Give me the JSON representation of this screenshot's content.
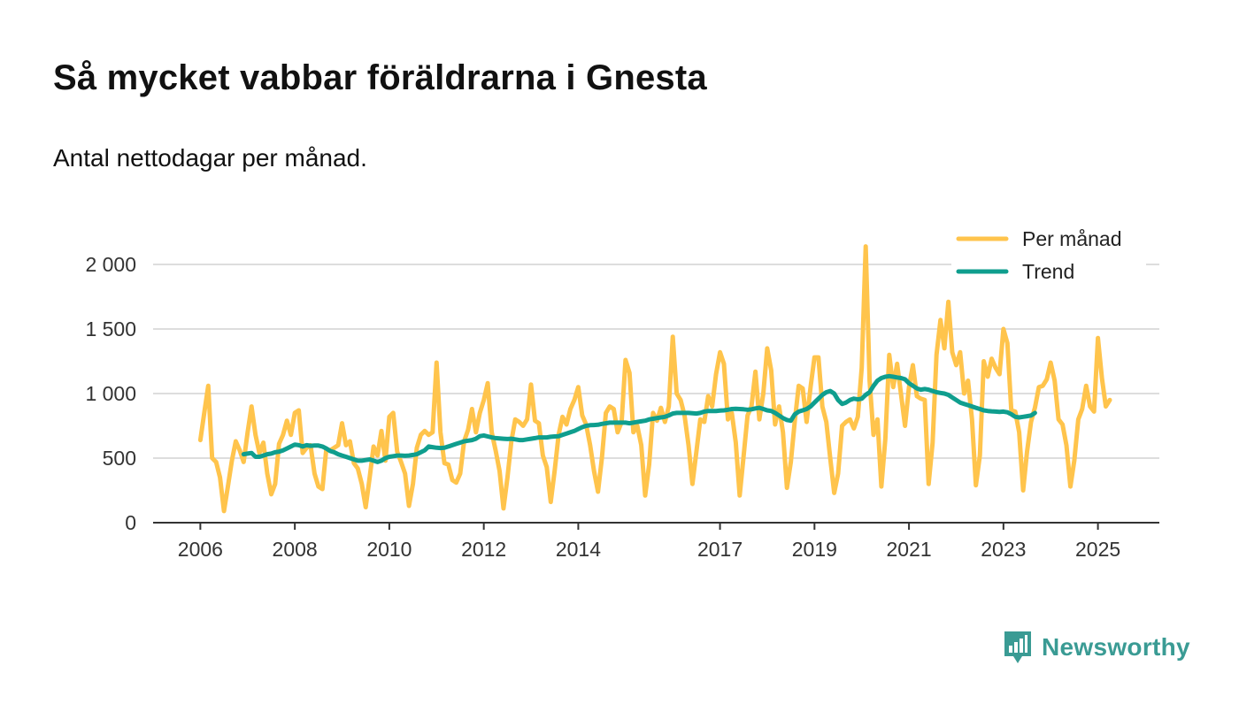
{
  "header": {
    "title": "Så mycket vabbar föräldrarna i Gnesta",
    "subtitle": "Antal nettodagar per månad."
  },
  "brand": {
    "name": "Newsworthy",
    "icon": "newsworthy-logo-icon",
    "color": "#3a9b94"
  },
  "colors": {
    "monthly": "#ffc44c",
    "trend": "#0f9e8e",
    "grid": "#dddddd",
    "axis": "#333333"
  },
  "chart_data": {
    "type": "line",
    "title": "Så mycket vabbar föräldrarna i Gnesta",
    "subtitle": "Antal nettodagar per månad.",
    "xlabel": "",
    "ylabel": "",
    "xlim": [
      2005.0,
      2026.3
    ],
    "ylim": [
      0,
      2000
    ],
    "yticks": [
      {
        "value": 0,
        "label": "0"
      },
      {
        "value": 500,
        "label": "500"
      },
      {
        "value": 1000,
        "label": "1 000"
      },
      {
        "value": 1500,
        "label": "1 500"
      },
      {
        "value": 2000,
        "label": "2 000"
      }
    ],
    "xticks": [
      {
        "value": 2006.0,
        "label": "2006"
      },
      {
        "value": 2008.0,
        "label": "2008"
      },
      {
        "value": 2010.0,
        "label": "2010"
      },
      {
        "value": 2012.0,
        "label": "2012"
      },
      {
        "value": 2014.0,
        "label": "2014"
      },
      {
        "value": 2017.0,
        "label": "2017"
      },
      {
        "value": 2019.0,
        "label": "2019"
      },
      {
        "value": 2021.0,
        "label": "2021"
      },
      {
        "value": 2023.0,
        "label": "2023"
      },
      {
        "value": 2025.0,
        "label": "2025"
      }
    ],
    "legend": {
      "position": "top-right"
    },
    "series": [
      {
        "name": "Per månad",
        "color": "#ffc44c",
        "start": 2006.0,
        "step": 0.0833333,
        "values": [
          640,
          850,
          1060,
          500,
          470,
          350,
          90,
          280,
          480,
          630,
          560,
          470,
          700,
          900,
          680,
          540,
          620,
          380,
          220,
          300,
          610,
          680,
          790,
          680,
          850,
          870,
          540,
          580,
          600,
          380,
          280,
          260,
          570,
          560,
          580,
          600,
          770,
          600,
          630,
          460,
          420,
          300,
          120,
          350,
          590,
          520,
          710,
          480,
          820,
          850,
          550,
          470,
          380,
          130,
          300,
          580,
          680,
          710,
          680,
          700,
          1240,
          700,
          460,
          450,
          330,
          310,
          380,
          630,
          720,
          880,
          700,
          850,
          950,
          1080,
          700,
          560,
          400,
          110,
          350,
          630,
          800,
          780,
          750,
          800,
          1070,
          790,
          770,
          520,
          430,
          160,
          400,
          680,
          820,
          760,
          880,
          950,
          1050,
          830,
          760,
          600,
          400,
          240,
          500,
          850,
          900,
          880,
          700,
          780,
          1260,
          1160,
          700,
          750,
          600,
          210,
          450,
          850,
          790,
          890,
          780,
          900,
          1440,
          1000,
          950,
          830,
          600,
          300,
          550,
          800,
          780,
          980,
          900,
          1150,
          1320,
          1230,
          800,
          850,
          620,
          210,
          520,
          830,
          900,
          1170,
          800,
          1000,
          1350,
          1180,
          760,
          900,
          700,
          270,
          470,
          790,
          1060,
          1040,
          780,
          1050,
          1280,
          1280,
          900,
          780,
          500,
          230,
          380,
          750,
          780,
          800,
          730,
          820,
          1200,
          2140,
          1100,
          680,
          800,
          280,
          650,
          1300,
          1050,
          1230,
          990,
          750,
          1050,
          1220,
          980,
          960,
          950,
          300,
          620,
          1300,
          1570,
          1350,
          1710,
          1320,
          1220,
          1320,
          1000,
          1100,
          800,
          290,
          520,
          1250,
          1130,
          1270,
          1200,
          1150,
          1500,
          1390,
          870,
          860,
          700,
          250,
          550,
          780,
          890,
          1050,
          1060,
          1110,
          1240,
          1100,
          800,
          760,
          600,
          280,
          480,
          800,
          880,
          1060,
          900,
          860,
          1430,
          1120,
          900,
          950
        ]
      },
      {
        "name": "Trend",
        "color": "#0f9e8e",
        "start": 2006.9167,
        "step": 0.0833333,
        "values": [
          530,
          535,
          540,
          510,
          510,
          520,
          530,
          535,
          545,
          550,
          560,
          575,
          590,
          605,
          600,
          590,
          600,
          595,
          598,
          597,
          590,
          575,
          555,
          545,
          530,
          520,
          510,
          500,
          490,
          480,
          480,
          485,
          490,
          480,
          470,
          480,
          500,
          510,
          515,
          520,
          520,
          518,
          520,
          525,
          530,
          545,
          560,
          590,
          585,
          580,
          578,
          580,
          590,
          600,
          610,
          620,
          630,
          635,
          640,
          650,
          670,
          675,
          668,
          660,
          655,
          652,
          650,
          648,
          650,
          645,
          640,
          640,
          645,
          650,
          655,
          660,
          660,
          660,
          665,
          668,
          670,
          680,
          690,
          700,
          710,
          725,
          740,
          750,
          755,
          756,
          758,
          765,
          770,
          775,
          775,
          775,
          775,
          775,
          770,
          775,
          780,
          785,
          790,
          800,
          805,
          810,
          815,
          820,
          830,
          845,
          850,
          850,
          850,
          850,
          848,
          845,
          850,
          860,
          865,
          865,
          865,
          868,
          870,
          875,
          880,
          882,
          880,
          878,
          875,
          878,
          885,
          890,
          880,
          870,
          865,
          850,
          830,
          810,
          795,
          790,
          840,
          860,
          870,
          880,
          900,
          930,
          960,
          990,
          1010,
          1020,
          1000,
          950,
          920,
          930,
          950,
          960,
          955,
          960,
          990,
          1010,
          1060,
          1100,
          1120,
          1130,
          1135,
          1130,
          1125,
          1120,
          1110,
          1080,
          1060,
          1040,
          1030,
          1035,
          1030,
          1020,
          1010,
          1005,
          1000,
          990,
          970,
          950,
          930,
          920,
          910,
          900,
          890,
          880,
          870,
          865,
          862,
          860,
          858,
          860,
          855,
          840,
          820,
          815,
          820,
          825,
          830,
          850
        ]
      }
    ]
  }
}
